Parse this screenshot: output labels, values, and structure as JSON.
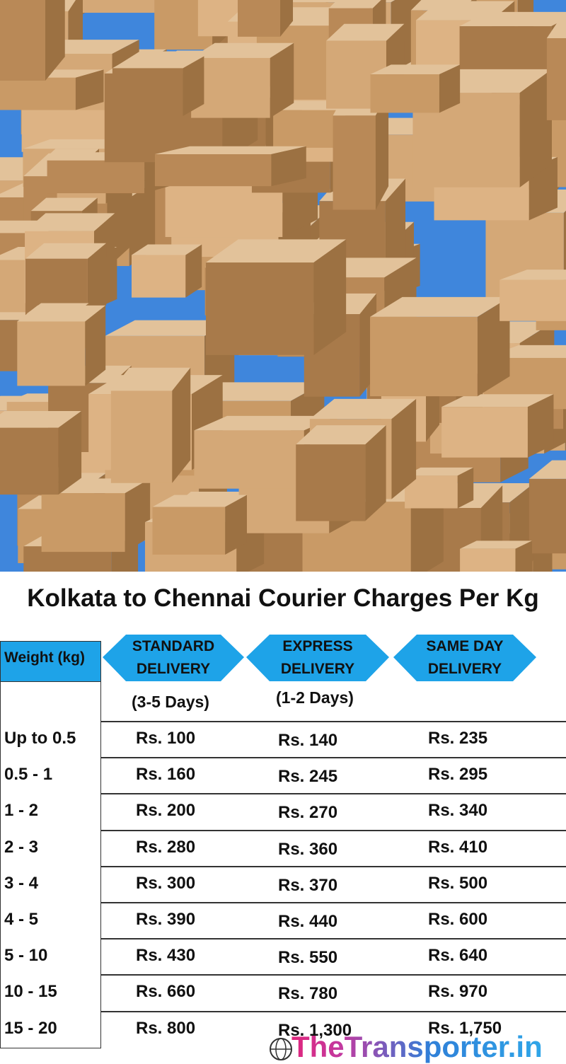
{
  "title": "Kolkata to Chennai Courier Charges Per Kg",
  "table": {
    "header": [
      "Weight (kg)",
      "STANDARD DELIVERY",
      "EXPRESS DELIVERY",
      "SAME DAY DELIVERY"
    ],
    "subheader": [
      "(3-5 Days)",
      "(1-2 Days)"
    ],
    "rows": [
      [
        "Up to 0.5",
        "Rs. 100",
        "Rs. 140",
        "Rs. 235"
      ],
      [
        "0.5 - 1",
        "Rs. 160",
        "Rs. 245",
        "Rs. 295"
      ],
      [
        "1 - 2",
        "Rs. 200",
        "Rs. 270",
        "Rs. 340"
      ],
      [
        "2 - 3",
        "Rs. 280",
        "Rs. 360",
        "Rs. 410"
      ],
      [
        "3 - 4",
        "Rs. 300",
        "Rs. 370",
        "Rs. 500"
      ],
      [
        "4 - 5",
        "Rs. 390",
        "Rs. 440",
        "Rs. 600"
      ],
      [
        "5 - 10",
        "Rs. 430",
        "Rs. 550",
        "Rs. 640"
      ],
      [
        "10 - 15",
        "Rs. 660",
        "Rs. 780",
        "Rs. 970"
      ],
      [
        "15 - 20",
        "Rs. 800",
        "Rs. 1,300",
        "Rs. 1,750"
      ]
    ]
  },
  "logo": "TheTransporter.in"
}
